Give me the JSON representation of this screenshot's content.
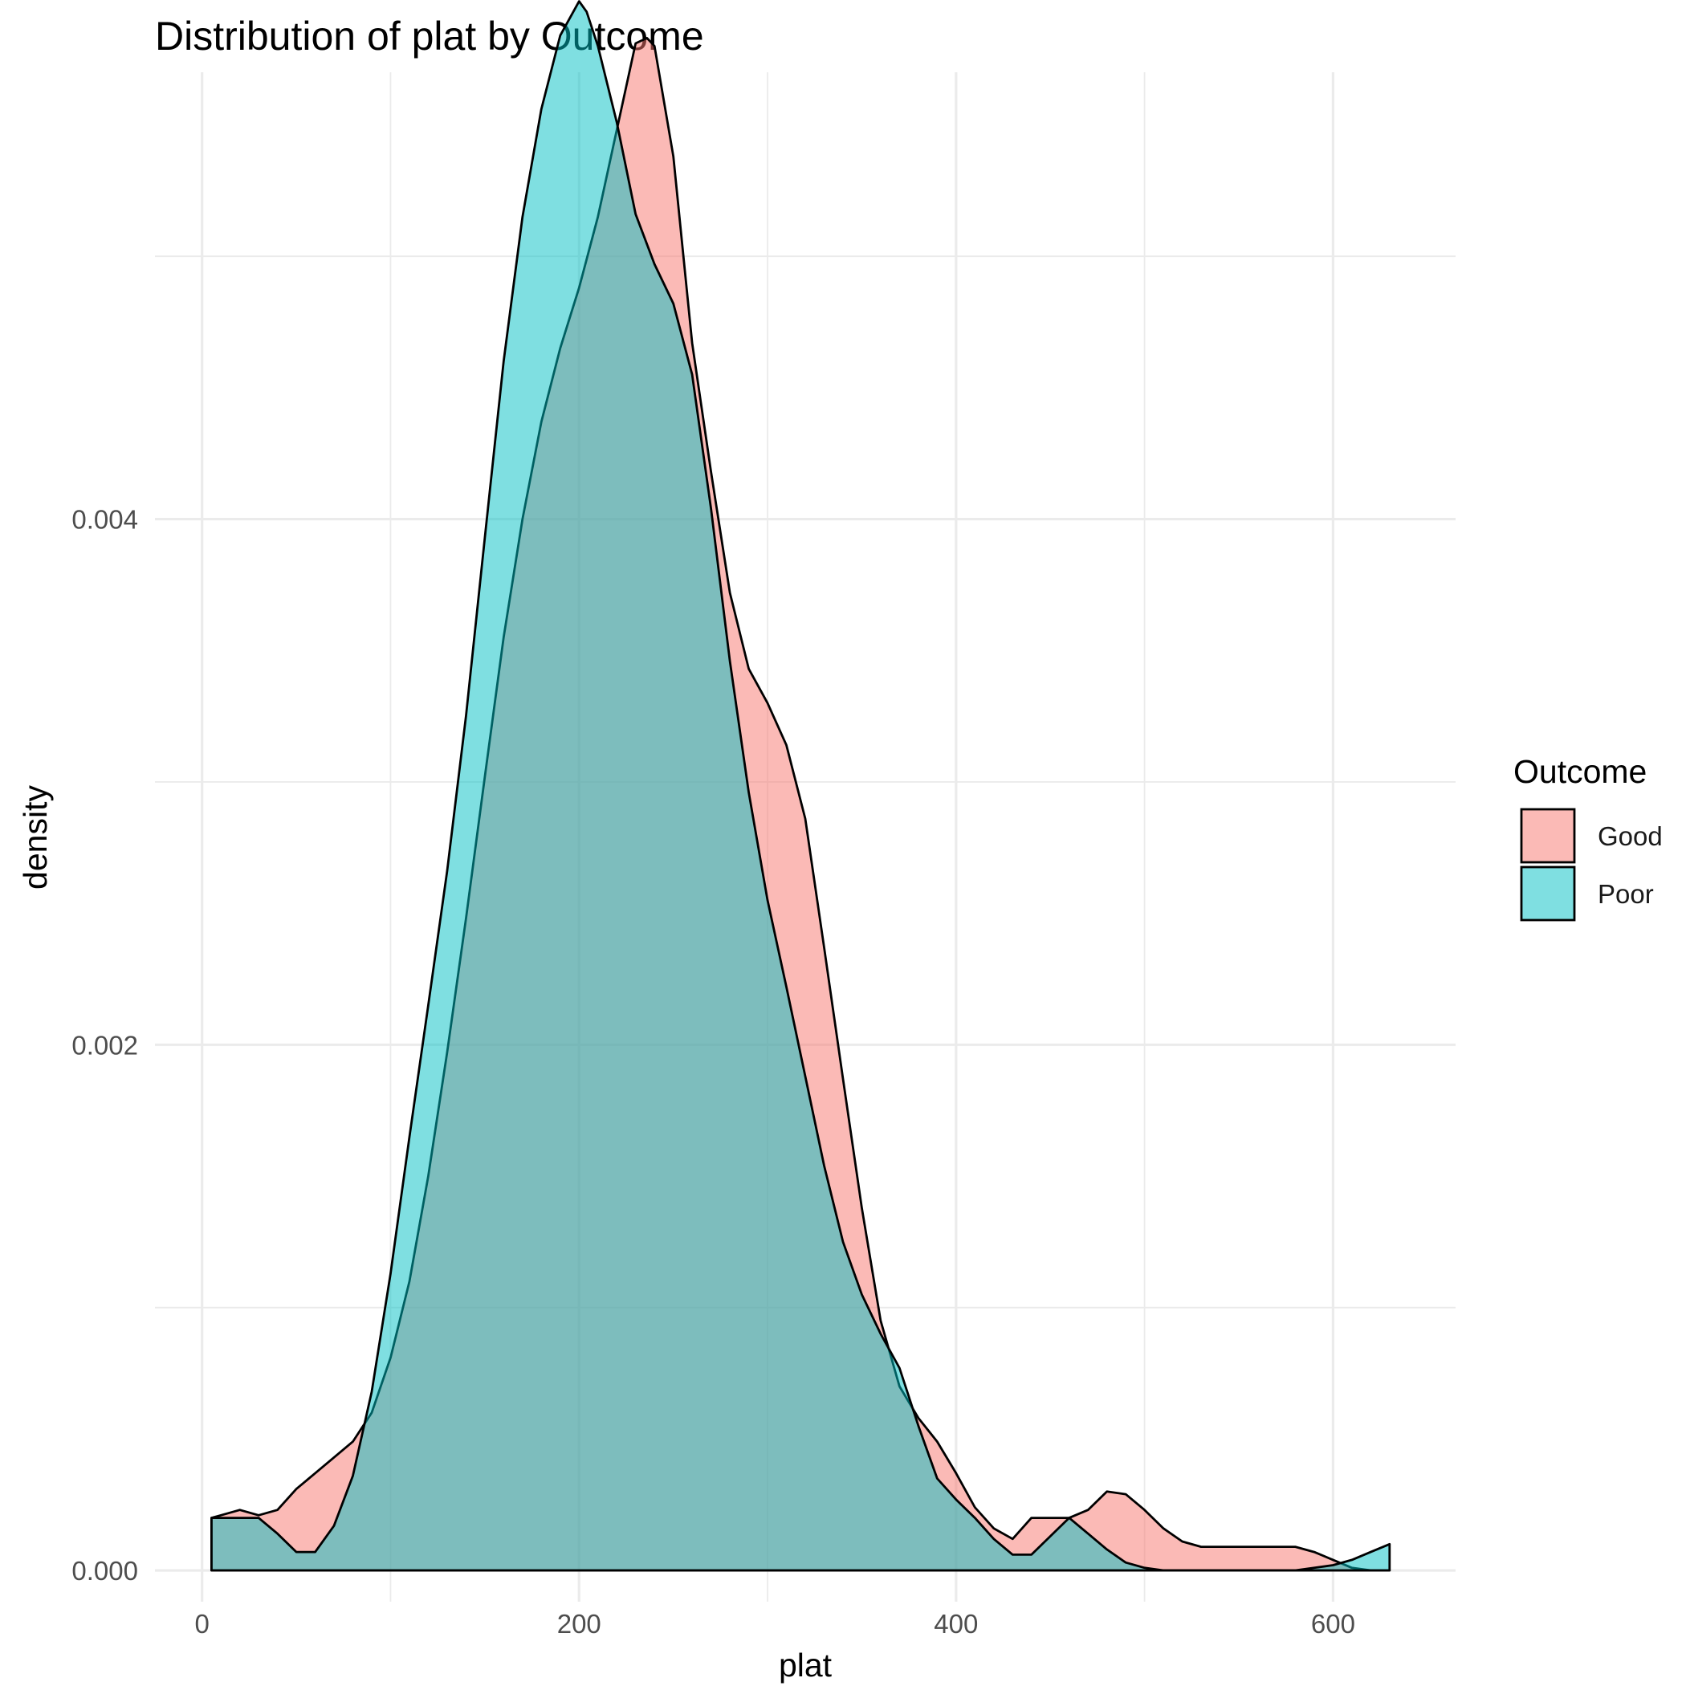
{
  "chart_data": {
    "type": "area",
    "chart_kind": "density",
    "title": "Distribution of plat by Outcome",
    "xlabel": "plat",
    "ylabel": "density",
    "xlim": [
      -25,
      665
    ],
    "ylim": [
      -0.000119,
      0.0057
    ],
    "x_ticks": [
      0,
      200,
      400,
      600
    ],
    "x_tick_labels": [
      "0",
      "200",
      "400",
      "600"
    ],
    "y_ticks": [
      0.0,
      0.002,
      0.004
    ],
    "y_tick_labels": [
      "0.000",
      "0.002",
      "0.004"
    ],
    "grid": true,
    "legend": {
      "title": "Outcome",
      "position": "right"
    },
    "series": [
      {
        "name": "Good",
        "color": "#F8766D",
        "x": [
          5,
          10,
          20,
          30,
          40,
          50,
          60,
          70,
          80,
          90,
          100,
          110,
          120,
          130,
          140,
          150,
          160,
          170,
          180,
          190,
          200,
          210,
          220,
          230,
          236,
          240,
          250,
          260,
          270,
          280,
          290,
          300,
          310,
          320,
          330,
          340,
          350,
          360,
          370,
          380,
          390,
          400,
          410,
          420,
          430,
          440,
          450,
          460,
          470,
          480,
          490,
          500,
          510,
          520,
          530,
          540,
          550,
          560,
          570,
          580,
          590,
          600,
          610,
          620,
          630
        ],
        "y": [
          0.0002,
          0.00021,
          0.00023,
          0.00021,
          0.00023,
          0.00031,
          0.00037,
          0.00043,
          0.00049,
          0.0006,
          0.00081,
          0.0011,
          0.0015,
          0.00197,
          0.00248,
          0.00302,
          0.00355,
          0.004,
          0.00437,
          0.00465,
          0.00488,
          0.00515,
          0.00548,
          0.00581,
          0.00583,
          0.0058,
          0.00538,
          0.00467,
          0.00418,
          0.00372,
          0.00343,
          0.0033,
          0.00314,
          0.00286,
          0.00237,
          0.00187,
          0.00138,
          0.00095,
          0.0007,
          0.00058,
          0.00049,
          0.00037,
          0.00024,
          0.00016,
          0.00012,
          0.0002,
          0.0002,
          0.0002,
          0.00023,
          0.0003,
          0.00029,
          0.00023,
          0.00016,
          0.00011,
          9e-05,
          9e-05,
          9e-05,
          9e-05,
          9e-05,
          9e-05,
          7e-05,
          4e-05,
          1e-05,
          0.0,
          0.0
        ]
      },
      {
        "name": "Poor",
        "color": "#00BFC4",
        "x": [
          5,
          10,
          20,
          30,
          40,
          50,
          60,
          70,
          80,
          90,
          100,
          110,
          120,
          130,
          140,
          150,
          160,
          170,
          180,
          190,
          200,
          204,
          210,
          220,
          230,
          240,
          250,
          260,
          270,
          280,
          290,
          300,
          310,
          320,
          330,
          340,
          350,
          360,
          370,
          380,
          390,
          400,
          410,
          420,
          430,
          440,
          450,
          460,
          470,
          480,
          490,
          500,
          510,
          520,
          530,
          540,
          550,
          560,
          570,
          580,
          590,
          600,
          610,
          620,
          630
        ],
        "y": [
          0.0002,
          0.0002,
          0.0002,
          0.0002,
          0.00014,
          7e-05,
          7e-05,
          0.00017,
          0.00036,
          0.00068,
          0.00113,
          0.00165,
          0.00215,
          0.00266,
          0.00325,
          0.00393,
          0.0046,
          0.00515,
          0.00556,
          0.00584,
          0.00597,
          0.00593,
          0.0058,
          0.00551,
          0.00516,
          0.00497,
          0.00482,
          0.00455,
          0.00404,
          0.00346,
          0.00296,
          0.00255,
          0.00222,
          0.00188,
          0.00154,
          0.00125,
          0.00105,
          0.0009,
          0.00077,
          0.00055,
          0.00035,
          0.00027,
          0.0002,
          0.00012,
          6e-05,
          6e-05,
          0.00013,
          0.0002,
          0.00014,
          8e-05,
          3e-05,
          1e-05,
          0.0,
          0.0,
          0.0,
          0.0,
          0.0,
          0.0,
          0.0,
          0.0,
          1e-05,
          2e-05,
          4e-05,
          7e-05,
          0.0001
        ]
      }
    ]
  }
}
